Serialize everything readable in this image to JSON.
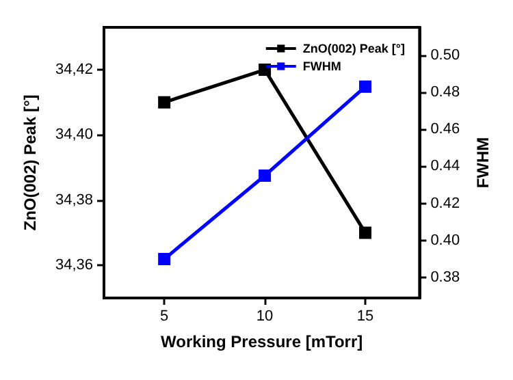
{
  "chart_data": {
    "type": "line",
    "xlabel": "Working Pressure [mTorr]",
    "ylabel": "ZnO(002) Peak [°]",
    "y2label": "FWHM",
    "x": [
      5,
      10,
      15
    ],
    "series": [
      {
        "name": "ZnO(002) Peak [°]",
        "color": "#000000",
        "values": [
          34.41,
          34.42,
          34.37
        ]
      },
      {
        "name": "FWHM",
        "color": "#0000ff",
        "values": [
          0.39,
          0.435,
          0.483
        ],
        "axis": "y2"
      }
    ],
    "xlim": [
      2,
      17.7
    ],
    "xticks": [
      5,
      10,
      15
    ],
    "ylim": [
      34.35,
      34.433
    ],
    "yticks": [
      {
        "value": 34.36,
        "label": "34,36"
      },
      {
        "value": 34.38,
        "label": "34,38"
      },
      {
        "value": 34.4,
        "label": "34,40"
      },
      {
        "value": 34.42,
        "label": "34,42"
      }
    ],
    "y2lim": [
      0.369,
      0.515
    ],
    "y2ticks": [
      0.38,
      {
        "value": 0.4,
        "label": "0.40"
      },
      0.42,
      0.44,
      0.46,
      0.48,
      {
        "value": 0.5,
        "label": "0.50"
      }
    ],
    "legend": "top right",
    "marker": "square",
    "line_style": "solid",
    "grid": false
  }
}
